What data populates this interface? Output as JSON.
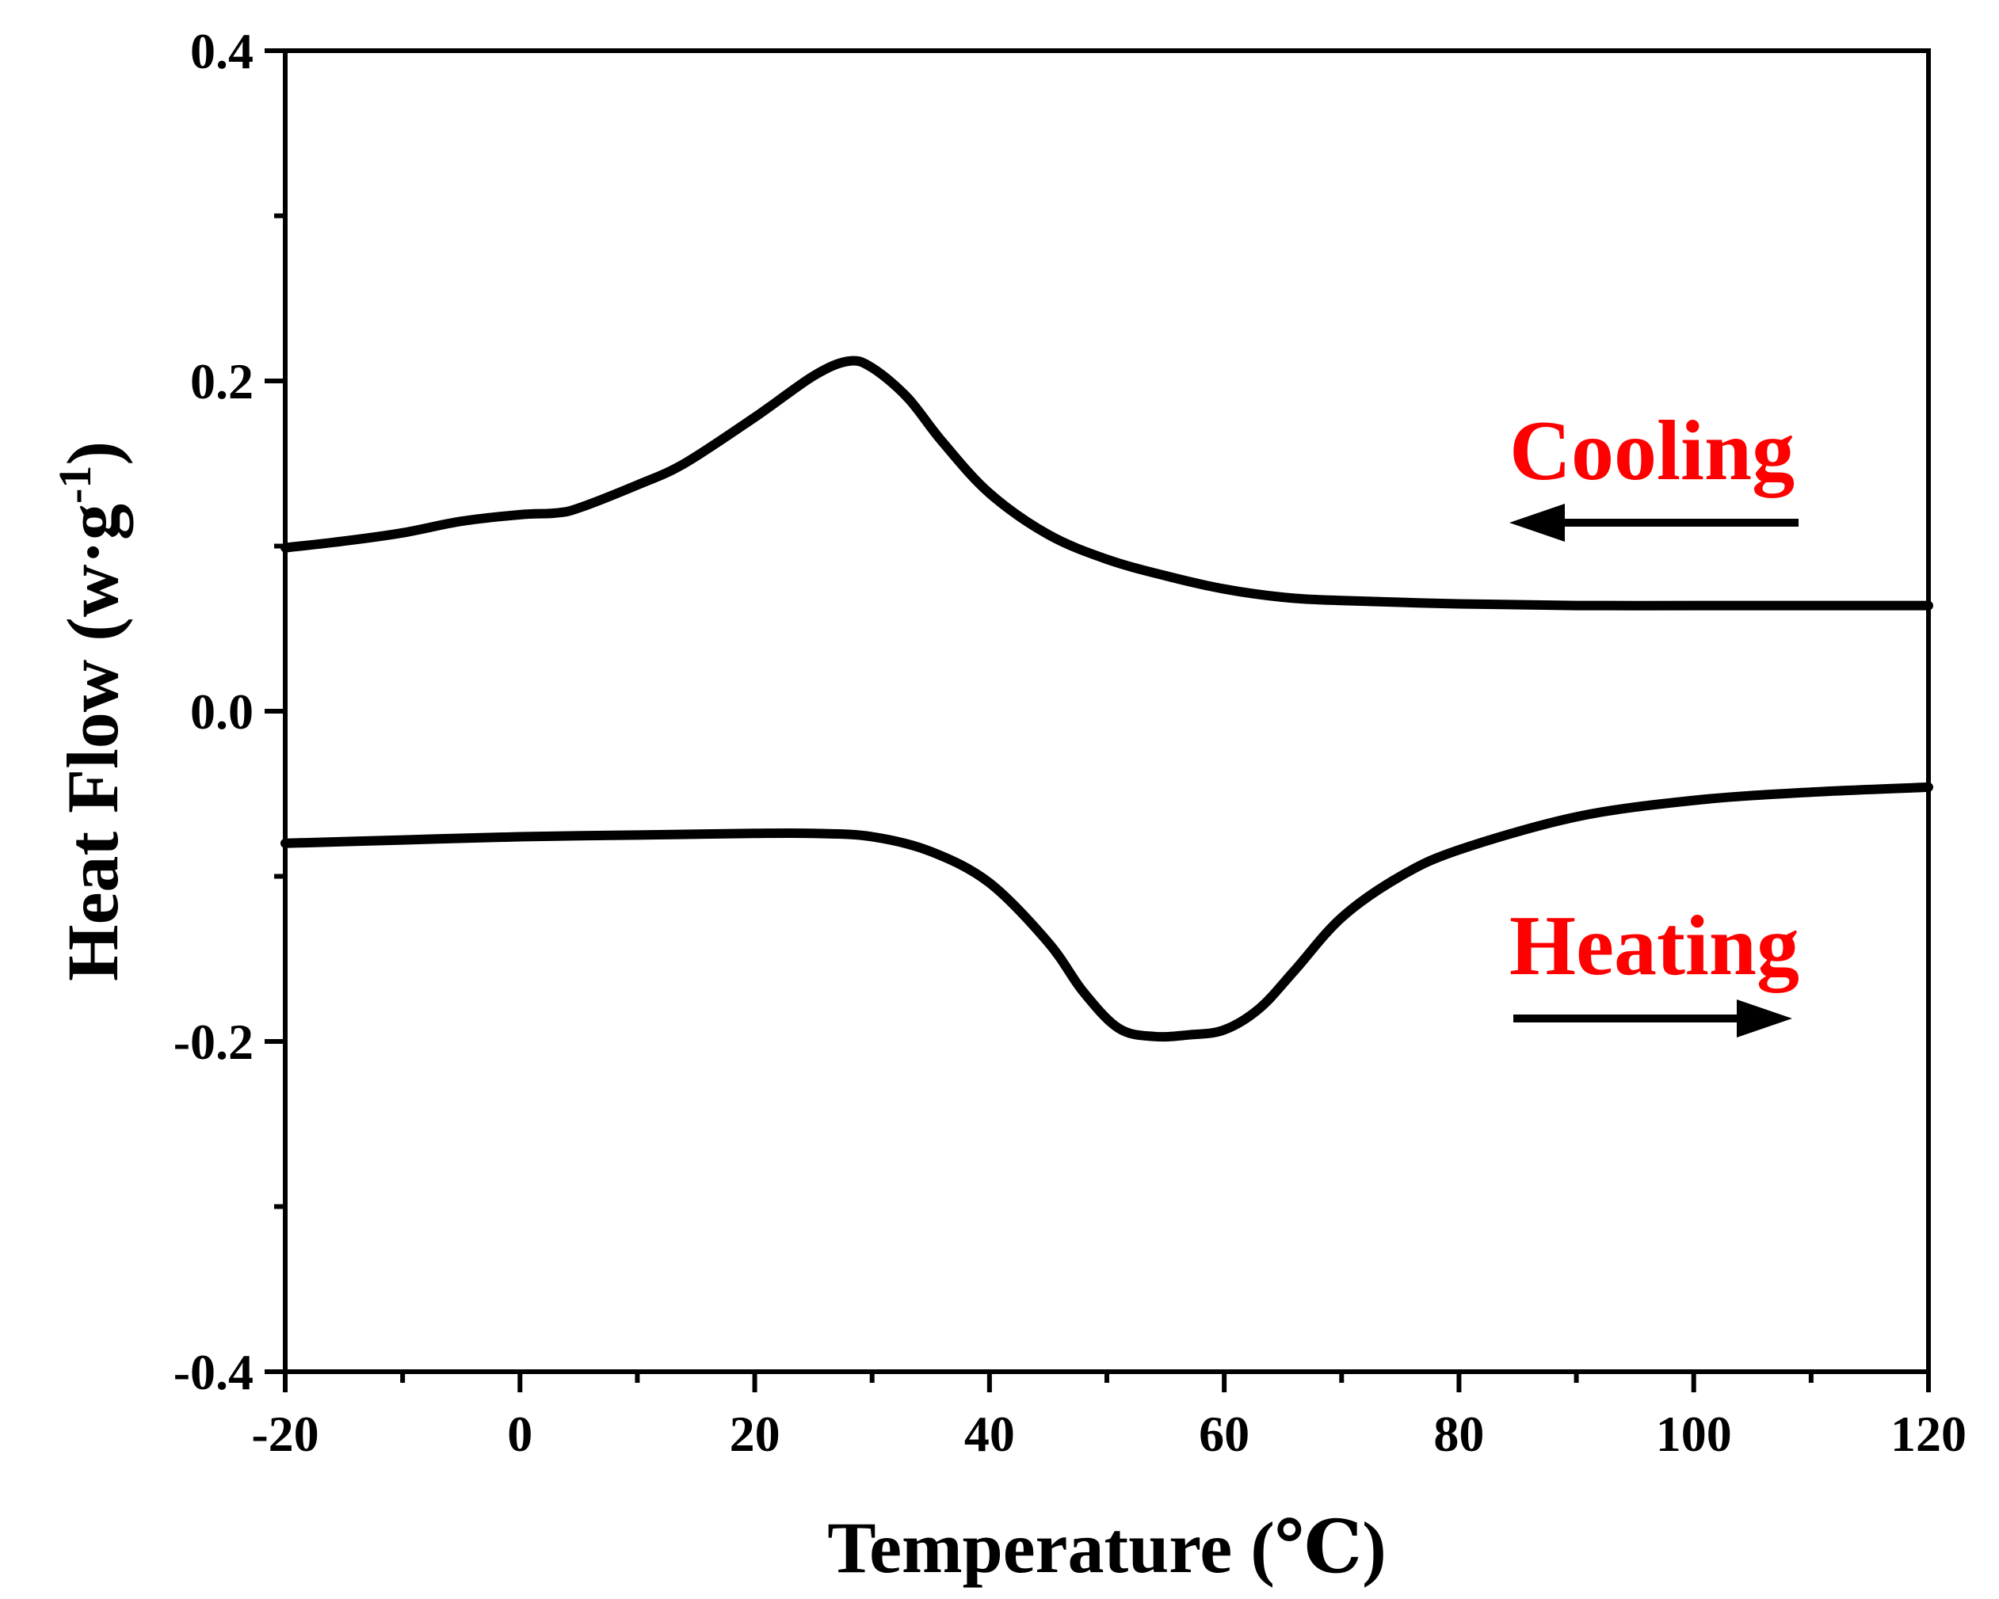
{
  "chart_data": {
    "type": "line",
    "title": "",
    "xlabel": "Temperature (℃)",
    "ylabel": "Heat Flow (w·g",
    "ylabel_superscript": "-1",
    "ylabel_close": ")",
    "xlim": [
      -20,
      120
    ],
    "ylim": [
      -0.4,
      0.4
    ],
    "xticks": [
      -20,
      0,
      20,
      40,
      60,
      80,
      100,
      120
    ],
    "xtick_labels": [
      "-20",
      "0",
      "20",
      "40",
      "60",
      "80",
      "100",
      "120"
    ],
    "yticks": [
      -0.4,
      -0.2,
      0.0,
      0.2,
      0.4
    ],
    "ytick_labels": [
      "-0.4",
      "-0.2",
      "0.0",
      "0.2",
      "0.4"
    ],
    "grid": false,
    "line_color": "#000000",
    "series": [
      {
        "name": "Cooling",
        "x": [
          -20,
          -15,
          -10,
          -5,
          0,
          3,
          5,
          10,
          14,
          20,
          25,
          28,
          30,
          33,
          36,
          40,
          45,
          50,
          55,
          60,
          65,
          70,
          80,
          90,
          100,
          110,
          120
        ],
        "y": [
          0.099,
          0.103,
          0.108,
          0.115,
          0.119,
          0.12,
          0.123,
          0.137,
          0.15,
          0.178,
          0.203,
          0.212,
          0.208,
          0.19,
          0.163,
          0.132,
          0.107,
          0.092,
          0.082,
          0.074,
          0.069,
          0.067,
          0.065,
          0.064,
          0.064,
          0.064,
          0.064
        ]
      },
      {
        "name": "Heating",
        "x": [
          -20,
          -10,
          0,
          10,
          20,
          25,
          30,
          35,
          40,
          45,
          48,
          51,
          54,
          57,
          60,
          63,
          66,
          70,
          75,
          80,
          90,
          100,
          110,
          120
        ],
        "y": [
          -0.08,
          -0.078,
          -0.076,
          -0.075,
          -0.074,
          -0.074,
          -0.076,
          -0.085,
          -0.104,
          -0.14,
          -0.17,
          -0.192,
          -0.197,
          -0.196,
          -0.193,
          -0.18,
          -0.157,
          -0.125,
          -0.1,
          -0.084,
          -0.064,
          -0.054,
          -0.049,
          -0.046
        ]
      }
    ],
    "annotations": [
      {
        "label": "Cooling",
        "color": "#ff0000",
        "arrow_direction": "left"
      },
      {
        "label": "Heating",
        "color": "#ff0000",
        "arrow_direction": "right"
      }
    ]
  }
}
